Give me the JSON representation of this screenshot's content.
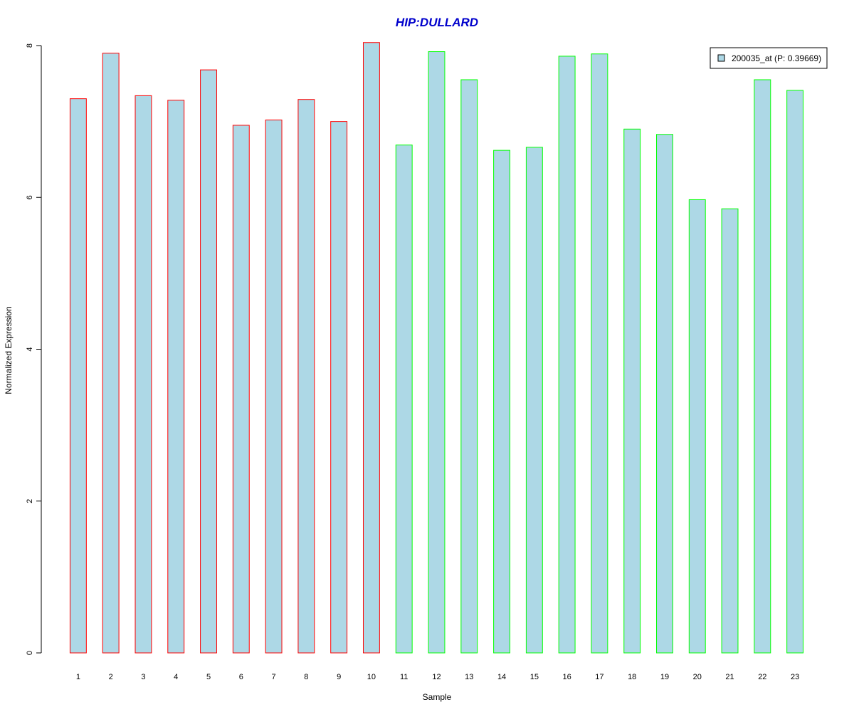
{
  "chart_data": {
    "type": "bar",
    "title": "HIP:DULLARD",
    "xlabel": "Sample",
    "ylabel": "Normalized Expression",
    "categories": [
      "1",
      "2",
      "3",
      "4",
      "5",
      "6",
      "7",
      "8",
      "9",
      "10",
      "11",
      "12",
      "13",
      "14",
      "15",
      "16",
      "17",
      "18",
      "19",
      "20",
      "21",
      "22",
      "23"
    ],
    "series": [
      {
        "name": "200035_at (P: 0.39669)",
        "values": [
          7.3,
          7.9,
          7.34,
          7.28,
          7.68,
          6.95,
          7.02,
          7.29,
          7.0,
          8.04,
          6.69,
          7.92,
          7.55,
          6.62,
          6.66,
          7.86,
          7.89,
          6.9,
          6.83,
          5.97,
          5.85,
          7.55,
          7.41
        ]
      }
    ],
    "bar_fill": "#ADD8E6",
    "bar_borders": [
      "#FF0000",
      "#FF0000",
      "#FF0000",
      "#FF0000",
      "#FF0000",
      "#FF0000",
      "#FF0000",
      "#FF0000",
      "#FF0000",
      "#FF0000",
      "#00FF00",
      "#00FF00",
      "#00FF00",
      "#00FF00",
      "#00FF00",
      "#00FF00",
      "#00FF00",
      "#00FF00",
      "#00FF00",
      "#00FF00",
      "#00FF00",
      "#00FF00",
      "#00FF00"
    ],
    "title_color": "#0000CC",
    "ylim": [
      0,
      8
    ],
    "yticks": [
      0,
      2,
      4,
      6,
      8
    ],
    "grid": false,
    "legend_position": "top-right"
  }
}
